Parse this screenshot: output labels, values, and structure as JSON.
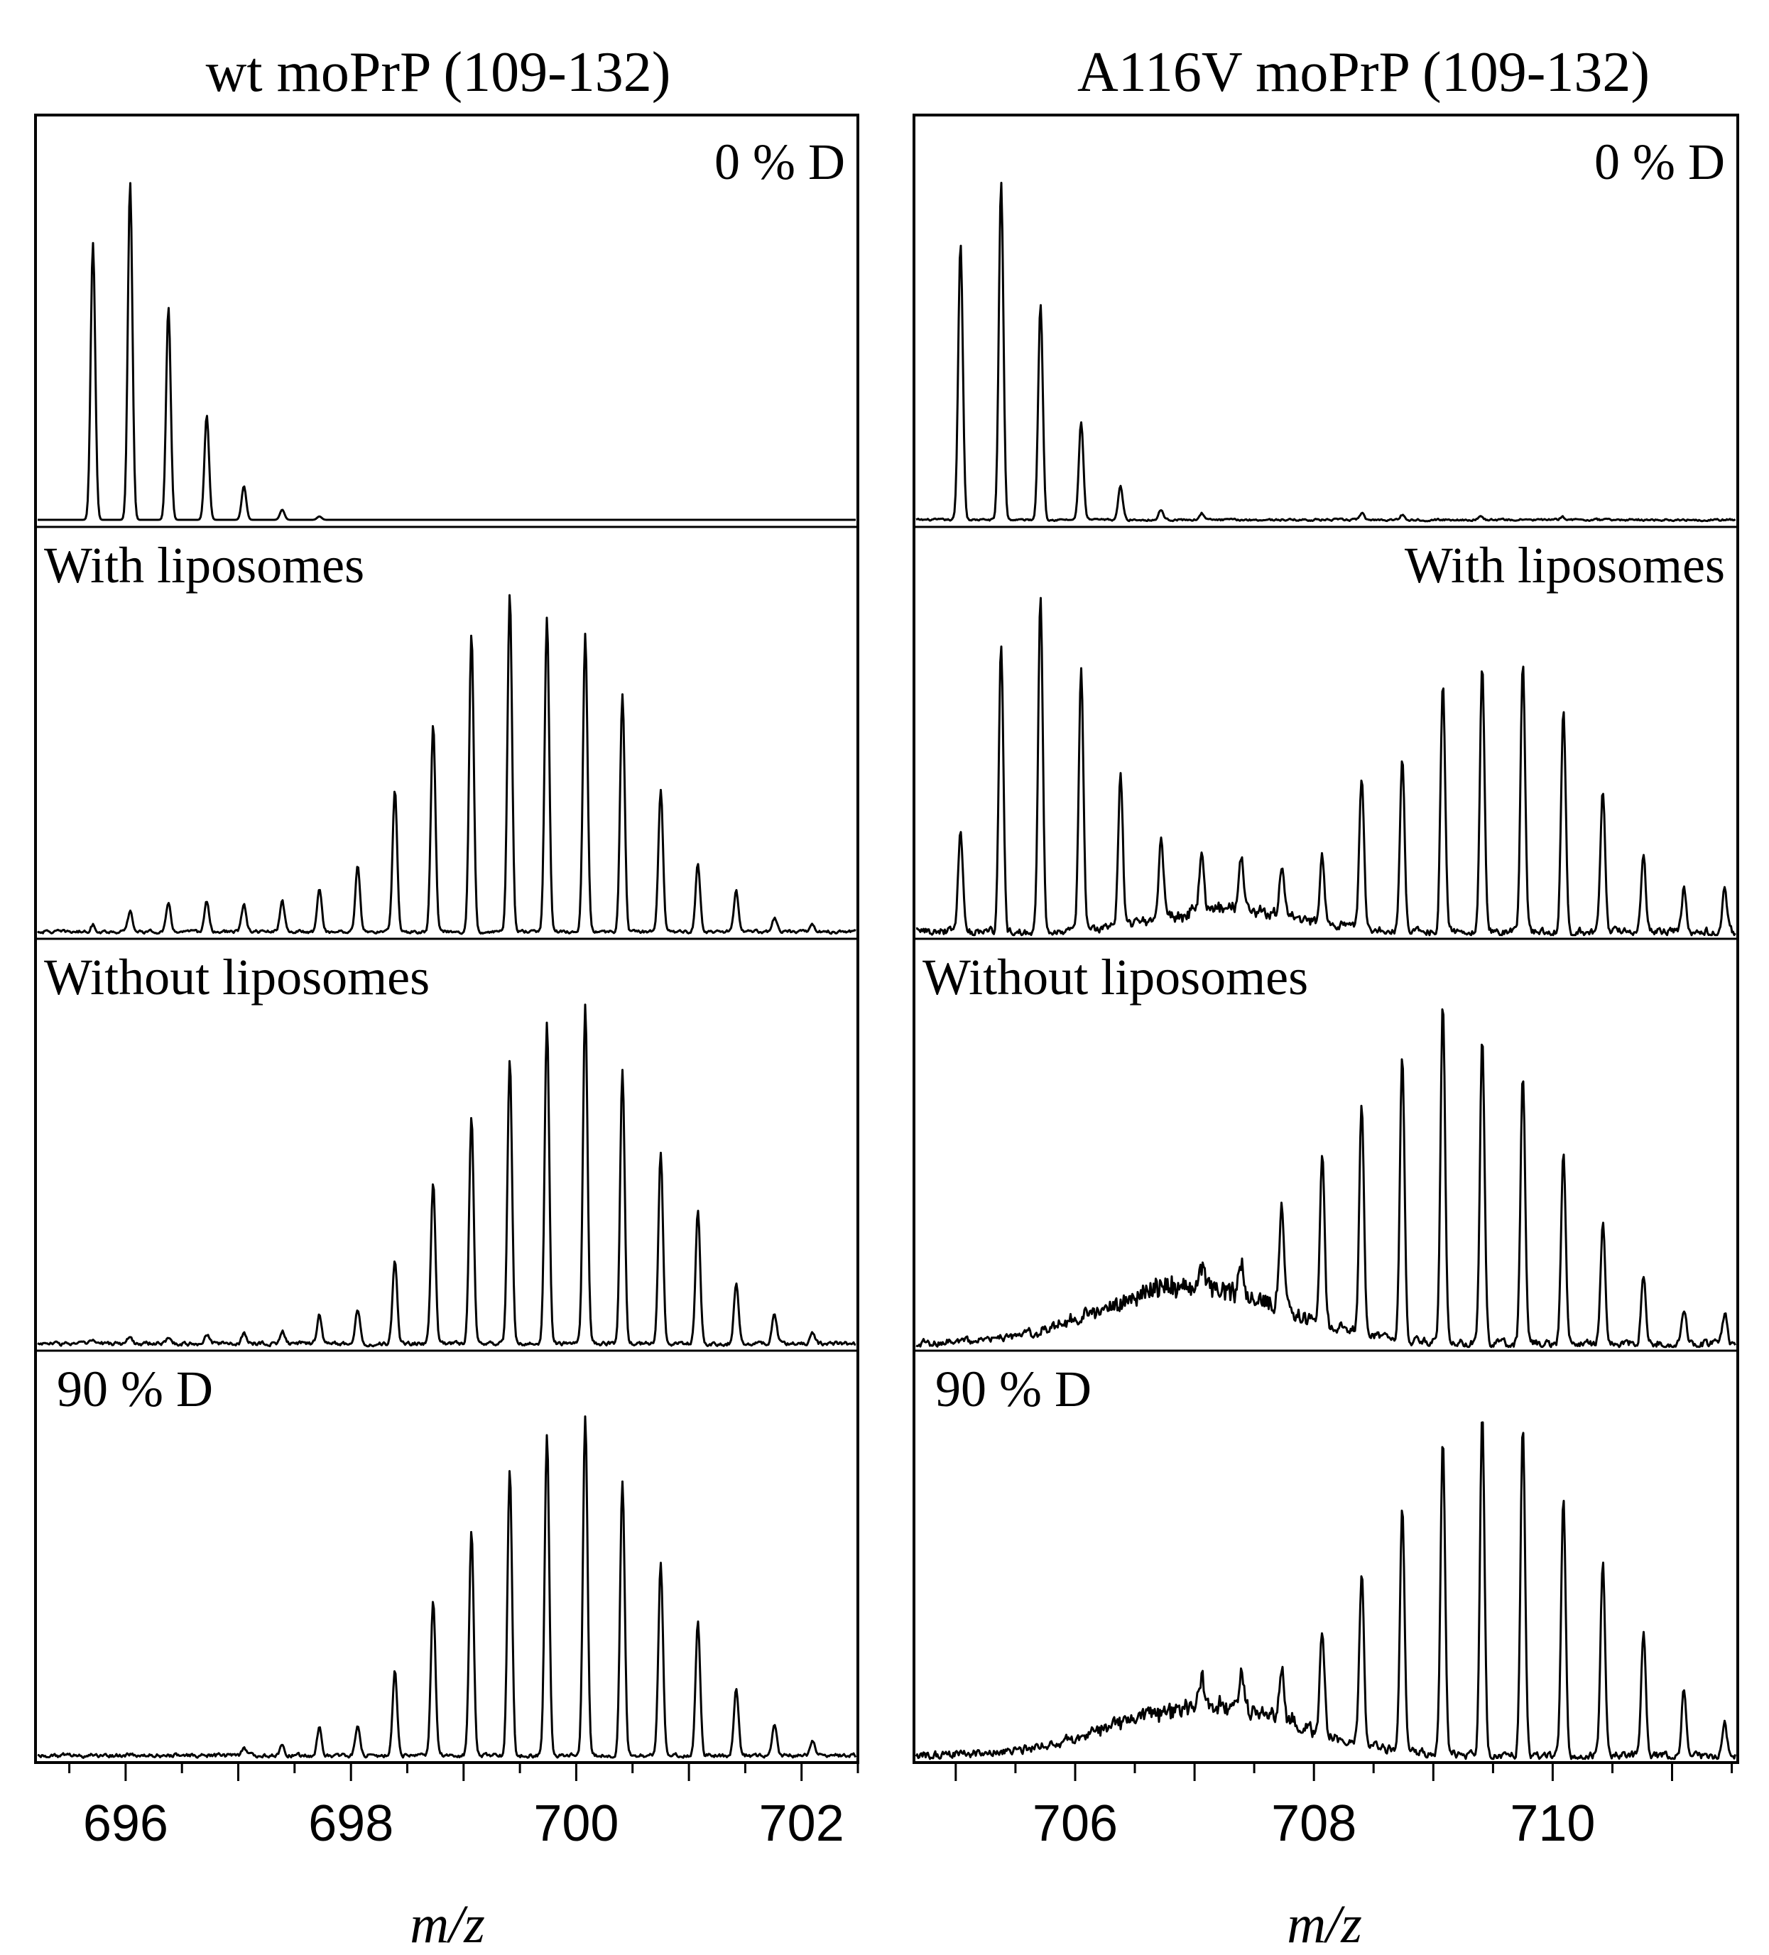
{
  "chart_data": [
    {
      "type": "line",
      "title": "wt moPrP (109-132)",
      "xlabel": "m/z",
      "ylabel": "",
      "xlim": [
        695.2,
        702.5
      ],
      "xticks": [
        696,
        698,
        700,
        702
      ],
      "tick_labels": [
        "696",
        "698",
        "700",
        "702"
      ],
      "grid": false,
      "series": [
        {
          "name": "0 % D",
          "label_position": "top-right",
          "peak_mz": [
            695.71,
            696.04,
            696.38,
            696.72,
            697.05,
            697.39,
            697.72
          ],
          "relative_intensity": [
            0.82,
            1.0,
            0.63,
            0.31,
            0.1,
            0.03,
            0.01
          ],
          "baseline_noise": 0.0
        },
        {
          "name": "With liposomes",
          "label_position": "top-left",
          "peak_mz": [
            695.71,
            696.04,
            696.38,
            696.72,
            697.05,
            697.39,
            697.72,
            698.06,
            698.39,
            698.73,
            699.07,
            699.41,
            699.74,
            700.08,
            700.41,
            700.75,
            701.08,
            701.42,
            701.76,
            702.1
          ],
          "relative_intensity": [
            0.02,
            0.06,
            0.08,
            0.09,
            0.08,
            0.09,
            0.13,
            0.2,
            0.42,
            0.62,
            0.88,
            1.0,
            0.93,
            0.88,
            0.7,
            0.42,
            0.2,
            0.12,
            0.04,
            0.02
          ],
          "baseline_noise": 0.008
        },
        {
          "name": "Without liposomes",
          "label_position": "top-left",
          "peak_mz": [
            695.71,
            696.04,
            696.38,
            696.72,
            697.05,
            697.39,
            697.72,
            698.06,
            698.39,
            698.73,
            699.07,
            699.41,
            699.74,
            700.08,
            700.41,
            700.75,
            701.08,
            701.42,
            701.76,
            702.1
          ],
          "relative_intensity": [
            0.01,
            0.02,
            0.02,
            0.03,
            0.03,
            0.04,
            0.09,
            0.1,
            0.25,
            0.48,
            0.67,
            0.84,
            0.95,
            1.0,
            0.81,
            0.57,
            0.39,
            0.18,
            0.09,
            0.03
          ],
          "baseline_noise": 0.01
        },
        {
          "name": "90 % D",
          "label_position": "top-left",
          "peak_mz": [
            697.05,
            697.39,
            697.72,
            698.06,
            698.39,
            698.73,
            699.07,
            699.41,
            699.74,
            700.08,
            700.41,
            700.75,
            701.08,
            701.42,
            701.76,
            702.1
          ],
          "relative_intensity": [
            0.02,
            0.03,
            0.08,
            0.09,
            0.25,
            0.46,
            0.66,
            0.85,
            0.95,
            1.0,
            0.81,
            0.57,
            0.39,
            0.2,
            0.09,
            0.04
          ],
          "baseline_noise": 0.01
        }
      ]
    },
    {
      "type": "line",
      "title": "A116V moPrP (109-132)",
      "xlabel": "m/z",
      "ylabel": "",
      "xlim": [
        704.65,
        711.55
      ],
      "xticks": [
        706,
        708,
        710
      ],
      "tick_labels": [
        "706",
        "708",
        "710"
      ],
      "grid": false,
      "series": [
        {
          "name": "0 % D",
          "label_position": "top-right",
          "peak_mz": [
            705.04,
            705.38,
            705.71,
            706.05,
            706.38,
            706.72,
            707.06,
            708.4,
            708.74,
            709.4,
            710.08
          ],
          "relative_intensity": [
            0.82,
            1.0,
            0.64,
            0.29,
            0.1,
            0.03,
            0.02,
            0.02,
            0.015,
            0.01,
            0.01
          ],
          "baseline_noise": 0.005
        },
        {
          "name": "With liposomes",
          "label_position": "top-right",
          "peak_mz": [
            705.04,
            705.38,
            705.71,
            706.05,
            706.38,
            706.72,
            707.06,
            707.39,
            707.73,
            708.07,
            708.4,
            708.74,
            709.08,
            709.41,
            709.75,
            710.09,
            710.42,
            710.76,
            711.1,
            711.44
          ],
          "relative_intensity": [
            0.3,
            0.85,
            1.0,
            0.78,
            0.45,
            0.24,
            0.18,
            0.16,
            0.14,
            0.19,
            0.45,
            0.52,
            0.74,
            0.79,
            0.79,
            0.66,
            0.42,
            0.22,
            0.13,
            0.13
          ],
          "baseline_noise": 0.02,
          "broad_hump": {
            "center_mz": 707.3,
            "height": 0.07,
            "width_mz": 0.55
          }
        },
        {
          "name": "Without liposomes",
          "label_position": "top-left",
          "peak_mz": [
            707.06,
            707.39,
            707.73,
            708.07,
            708.4,
            708.74,
            709.08,
            709.41,
            709.75,
            710.09,
            710.42,
            710.76,
            711.1,
            711.44
          ],
          "relative_intensity": [
            0.06,
            0.1,
            0.3,
            0.5,
            0.68,
            0.85,
            1.0,
            0.92,
            0.8,
            0.58,
            0.35,
            0.2,
            0.1,
            0.09
          ],
          "baseline_noise": 0.02,
          "broad_hump": {
            "center_mz": 707.0,
            "height": 0.17,
            "width_mz": 0.75
          }
        },
        {
          "name": "90 % D",
          "label_position": "top-left",
          "peak_mz": [
            707.06,
            707.39,
            707.73,
            708.07,
            708.4,
            708.74,
            709.08,
            709.41,
            709.75,
            710.09,
            710.42,
            710.76,
            711.1,
            711.44
          ],
          "relative_intensity": [
            0.07,
            0.1,
            0.15,
            0.3,
            0.5,
            0.71,
            0.93,
            1.0,
            0.98,
            0.75,
            0.57,
            0.36,
            0.2,
            0.1
          ],
          "baseline_noise": 0.02,
          "broad_hump": {
            "center_mz": 707.1,
            "height": 0.15,
            "width_mz": 0.75
          }
        }
      ]
    }
  ]
}
